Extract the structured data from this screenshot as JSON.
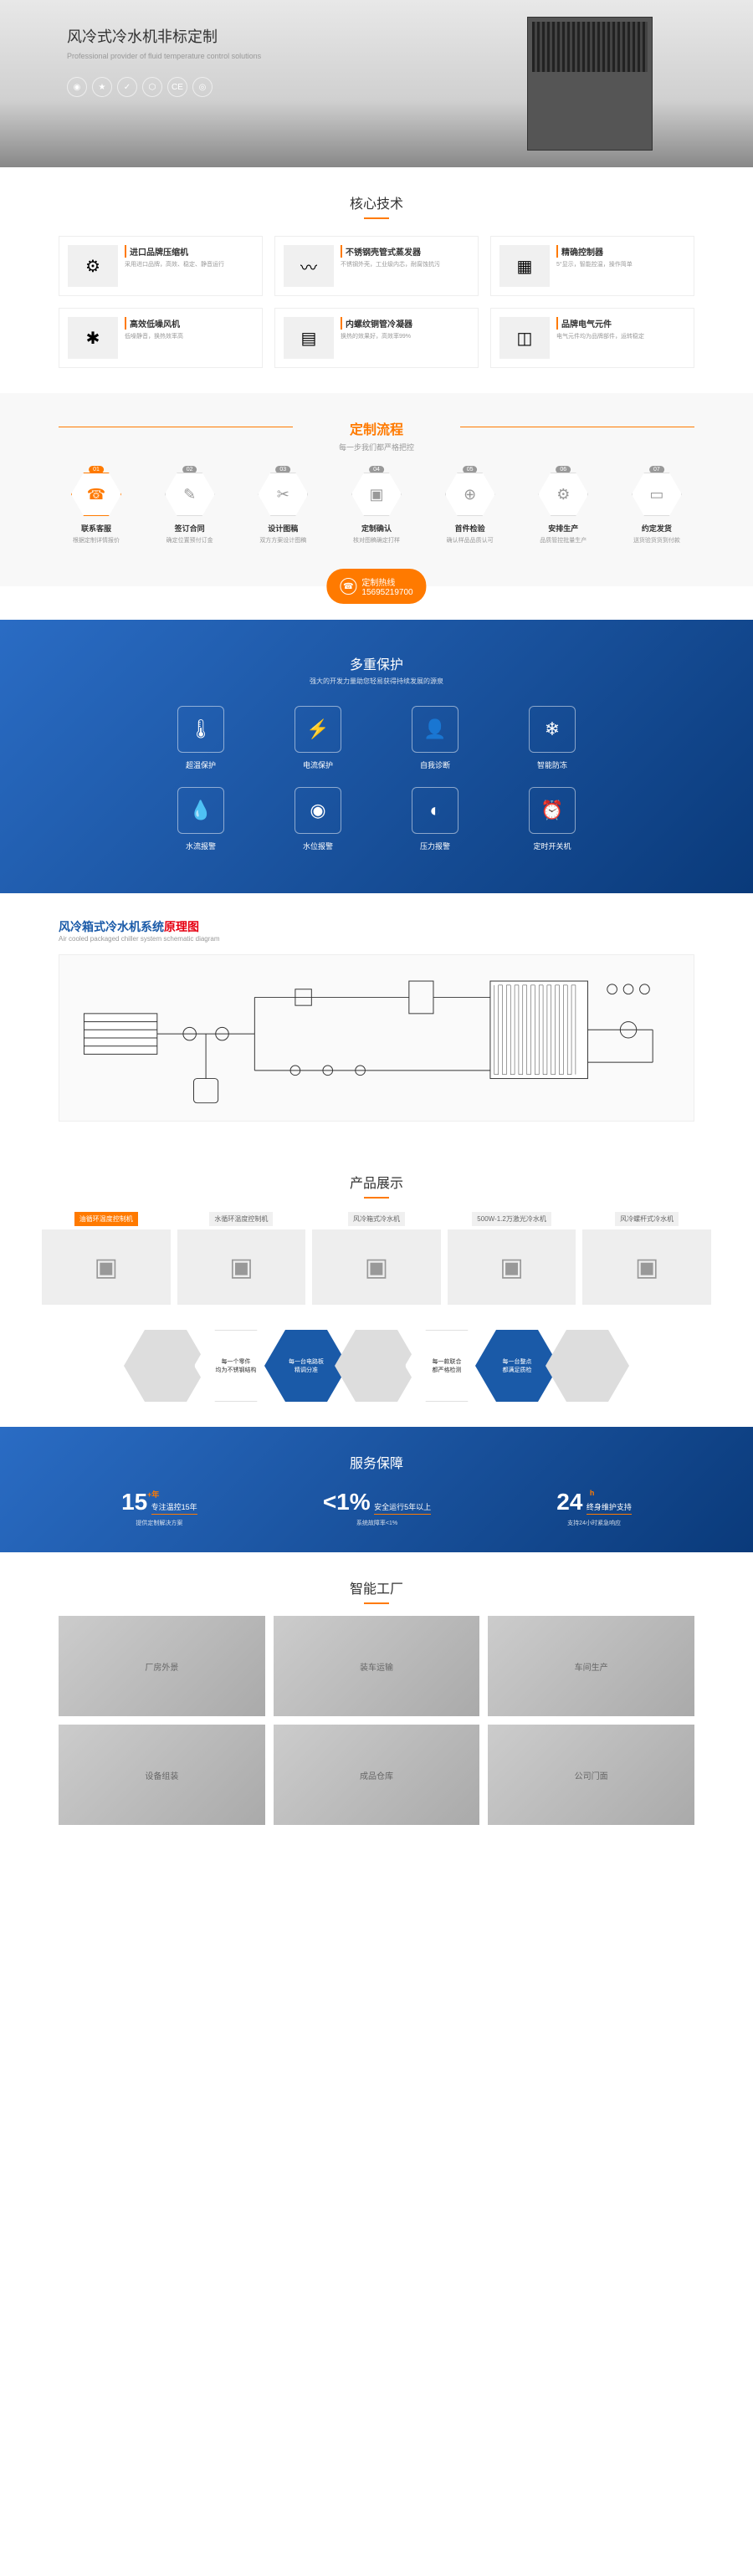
{
  "hero": {
    "title": "风冷式冷水机非标定制",
    "subtitle": "Professional provider of fluid temperature control solutions"
  },
  "tech": {
    "title": "核心技术",
    "items": [
      {
        "icon": "⚙",
        "title": "进口品牌压缩机",
        "desc": "采用进口品牌，高效、稳定、静音运行"
      },
      {
        "icon": "〰",
        "title": "不锈钢壳管式蒸发器",
        "desc": "不锈钢外壳，工业级内芯，耐腐蚀抗污"
      },
      {
        "icon": "▦",
        "title": "精确控制器",
        "desc": "5°显示，智能控温，操作简单"
      },
      {
        "icon": "✱",
        "title": "高效低噪风机",
        "desc": "低噪静音，换热效率高"
      },
      {
        "icon": "▤",
        "title": "内螺纹铜管冷凝器",
        "desc": "换热的效果好，高效率99%"
      },
      {
        "icon": "◫",
        "title": "品牌电气元件",
        "desc": "电气元件均为品牌部件，运转稳定"
      }
    ]
  },
  "process": {
    "title": "定制流程",
    "subtitle": "每一步我们都严格把控",
    "hotline_label": "定制热线",
    "hotline_num": "15695219700",
    "steps": [
      {
        "num": "01",
        "icon": "☎",
        "name": "联系客服",
        "desc": "根据定制详情报价"
      },
      {
        "num": "02",
        "icon": "✎",
        "name": "签订合同",
        "desc": "确定位置预付订金"
      },
      {
        "num": "03",
        "icon": "✂",
        "name": "设计图稿",
        "desc": "双方方案设计图稿"
      },
      {
        "num": "04",
        "icon": "▣",
        "name": "定制确认",
        "desc": "核对图稿确定打样"
      },
      {
        "num": "05",
        "icon": "⊕",
        "name": "首件检验",
        "desc": "确认样品品质认可"
      },
      {
        "num": "06",
        "icon": "⚙",
        "name": "安排生产",
        "desc": "品质管控批量生产"
      },
      {
        "num": "07",
        "icon": "▭",
        "name": "约定发货",
        "desc": "送货验货货到付款"
      }
    ]
  },
  "protection": {
    "title": "多重保护",
    "subtitle": "强大的开发力量助您轻易获得持续发展的源泉",
    "items": [
      {
        "icon": "🌡",
        "name": "超温保护"
      },
      {
        "icon": "⚡",
        "name": "电流保护"
      },
      {
        "icon": "👤",
        "name": "自我诊断"
      },
      {
        "icon": "❄",
        "name": "智能防冻"
      },
      {
        "icon": "💧",
        "name": "水流报警"
      },
      {
        "icon": "◉",
        "name": "水位报警"
      },
      {
        "icon": "◐",
        "name": "压力报警"
      },
      {
        "icon": "⏰",
        "name": "定时开关机"
      }
    ]
  },
  "diagram": {
    "title_blue": "风冷箱式冷水机系统",
    "title_red": "原理图",
    "en": "Air cooled packaged chiller system schematic diagram"
  },
  "products": {
    "title": "产品展示",
    "tabs": [
      {
        "name": "油循环温度控制机",
        "active": true
      },
      {
        "name": "水循环温度控制机",
        "active": false
      },
      {
        "name": "风冷箱式冷水机",
        "active": false
      },
      {
        "name": "500W-1.2万激光冷水机",
        "active": false
      },
      {
        "name": "风冷螺杆式冷水机",
        "active": false
      }
    ],
    "hex": [
      {
        "type": "photo"
      },
      {
        "type": "white",
        "line1": "每一个零件",
        "line2": "均为不锈钢结构"
      },
      {
        "type": "blue",
        "line1": "每一台电路板",
        "line2": "精调分准"
      },
      {
        "type": "photo"
      },
      {
        "type": "white",
        "line1": "每一款联合",
        "line2": "都严格检测"
      },
      {
        "type": "blue",
        "line1": "每一台整点",
        "line2": "都满足质检"
      },
      {
        "type": "photo"
      }
    ]
  },
  "service": {
    "title": "服务保障",
    "items": [
      {
        "num": "15",
        "unit": "+年",
        "label": "专注温控15年",
        "desc": "提供定制解决方案"
      },
      {
        "num": "<1%",
        "unit": "",
        "label": "安全运行5年以上",
        "desc": "系统故障率<1%"
      },
      {
        "num": "24",
        "unit": "h",
        "label": "终身维护支持",
        "desc": "支持24小时紧急响应"
      }
    ]
  },
  "factory": {
    "title": "智能工厂",
    "images": [
      "厂房外景",
      "装车运输",
      "车间生产",
      "设备组装",
      "成品仓库",
      "公司门面"
    ]
  },
  "colors": {
    "orange": "#ff7a00",
    "blue": "#1a5aa8",
    "dark_blue": "#0a3a7a"
  }
}
